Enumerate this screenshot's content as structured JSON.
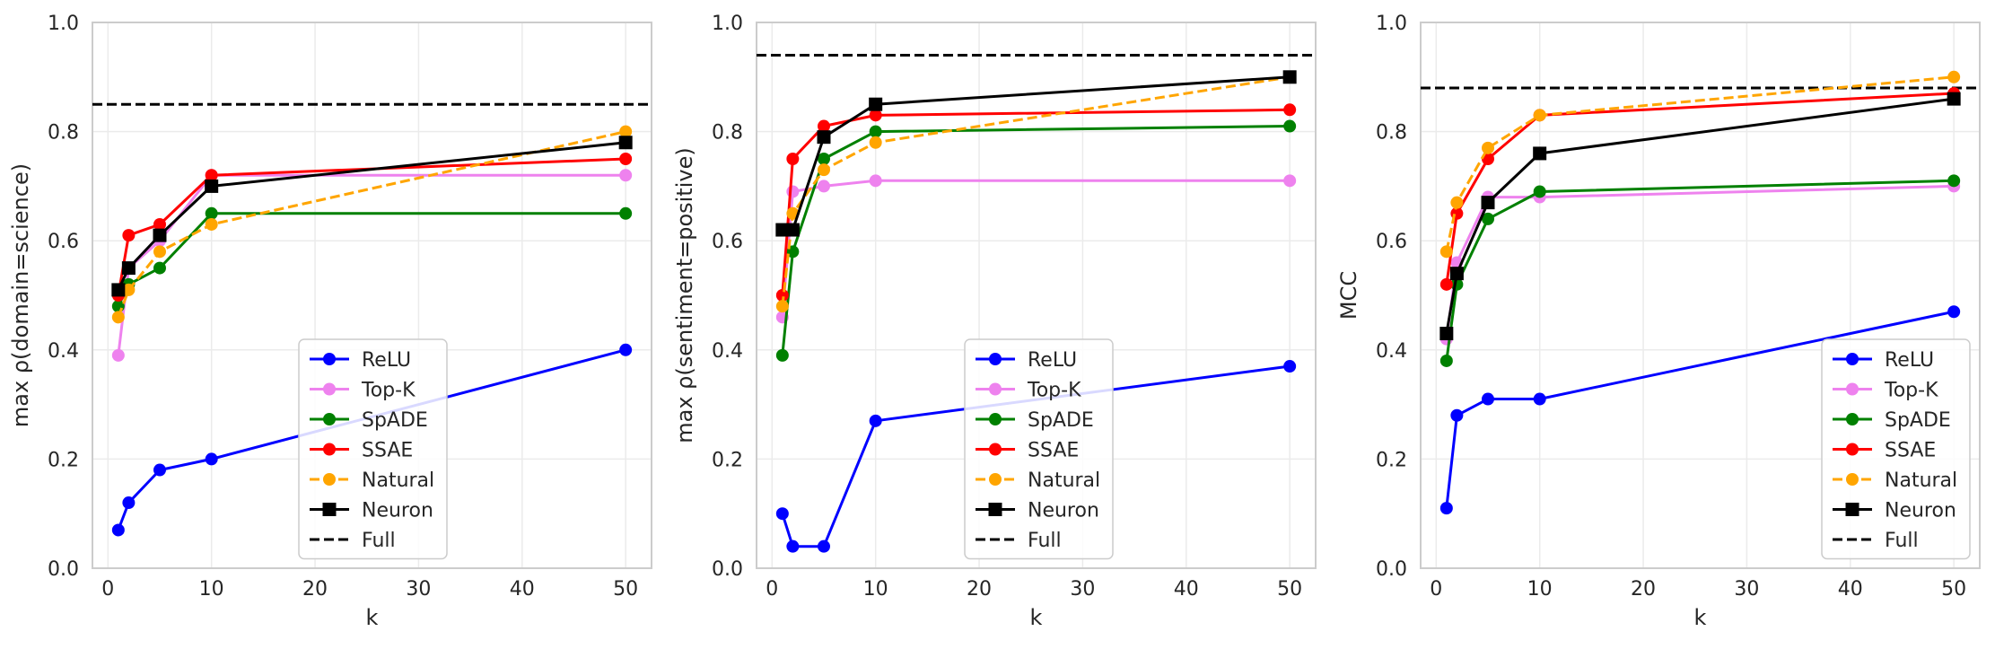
{
  "chart_data": [
    {
      "type": "line",
      "title": "",
      "xlabel": "k",
      "ylabel": "max ρ(domain=science)",
      "xlim": [
        -1.5,
        52.5
      ],
      "ylim": [
        0.0,
        1.0
      ],
      "xticks": [
        "0",
        "10",
        "20",
        "30",
        "40",
        "50"
      ],
      "yticks": [
        "0.0",
        "0.2",
        "0.4",
        "0.6",
        "0.8",
        "1.0"
      ],
      "grid": true,
      "legend_position": "lower-center",
      "x": [
        1,
        2,
        5,
        10,
        50
      ],
      "series": [
        {
          "name": "ReLU",
          "color": "#0000ff",
          "style": "solid",
          "marker": "circle",
          "values": [
            0.07,
            0.12,
            0.18,
            0.2,
            0.4
          ]
        },
        {
          "name": "Top-K",
          "color": "#ee82ee",
          "style": "solid",
          "marker": "circle",
          "values": [
            0.39,
            0.55,
            0.6,
            0.72,
            0.72
          ]
        },
        {
          "name": "SpADE",
          "color": "#008000",
          "style": "solid",
          "marker": "circle",
          "values": [
            0.48,
            0.52,
            0.55,
            0.65,
            0.65
          ]
        },
        {
          "name": "SSAE",
          "color": "#ff0000",
          "style": "solid",
          "marker": "circle",
          "values": [
            0.5,
            0.61,
            0.63,
            0.72,
            0.75
          ]
        },
        {
          "name": "Natural",
          "color": "#ffa500",
          "style": "dashed",
          "marker": "circle",
          "values": [
            0.46,
            0.51,
            0.58,
            0.63,
            0.8
          ]
        },
        {
          "name": "Neuron",
          "color": "#000000",
          "style": "solid",
          "marker": "square",
          "values": [
            0.51,
            0.55,
            0.61,
            0.7,
            0.78
          ]
        }
      ],
      "reference": {
        "name": "Full",
        "value": 0.85,
        "color": "#000000",
        "style": "dashed"
      }
    },
    {
      "type": "line",
      "title": "",
      "xlabel": "k",
      "ylabel": "max ρ(sentiment=positive)",
      "xlim": [
        -1.5,
        52.5
      ],
      "ylim": [
        0.0,
        1.0
      ],
      "xticks": [
        "0",
        "10",
        "20",
        "30",
        "40",
        "50"
      ],
      "yticks": [
        "0.0",
        "0.2",
        "0.4",
        "0.6",
        "0.8",
        "1.0"
      ],
      "grid": true,
      "legend_position": "lower-center",
      "x": [
        1,
        2,
        5,
        10,
        50
      ],
      "series": [
        {
          "name": "ReLU",
          "color": "#0000ff",
          "style": "solid",
          "marker": "circle",
          "values": [
            0.1,
            0.04,
            0.04,
            0.27,
            0.37
          ]
        },
        {
          "name": "Top-K",
          "color": "#ee82ee",
          "style": "solid",
          "marker": "circle",
          "values": [
            0.46,
            0.69,
            0.7,
            0.71,
            0.71
          ]
        },
        {
          "name": "SpADE",
          "color": "#008000",
          "style": "solid",
          "marker": "circle",
          "values": [
            0.39,
            0.58,
            0.75,
            0.8,
            0.81
          ]
        },
        {
          "name": "SSAE",
          "color": "#ff0000",
          "style": "solid",
          "marker": "circle",
          "values": [
            0.5,
            0.75,
            0.81,
            0.83,
            0.84
          ]
        },
        {
          "name": "Natural",
          "color": "#ffa500",
          "style": "dashed",
          "marker": "circle",
          "values": [
            0.48,
            0.65,
            0.73,
            0.78,
            0.9
          ]
        },
        {
          "name": "Neuron",
          "color": "#000000",
          "style": "solid",
          "marker": "square",
          "values": [
            0.62,
            0.62,
            0.79,
            0.85,
            0.9
          ]
        }
      ],
      "reference": {
        "name": "Full",
        "value": 0.94,
        "color": "#000000",
        "style": "dashed"
      }
    },
    {
      "type": "line",
      "title": "",
      "xlabel": "k",
      "ylabel": "MCC",
      "xlim": [
        -1.5,
        52.5
      ],
      "ylim": [
        0.0,
        1.0
      ],
      "xticks": [
        "0",
        "10",
        "20",
        "30",
        "40",
        "50"
      ],
      "yticks": [
        "0.0",
        "0.2",
        "0.4",
        "0.6",
        "0.8",
        "1.0"
      ],
      "grid": true,
      "legend_position": "lower-right",
      "x": [
        1,
        2,
        5,
        10,
        50
      ],
      "series": [
        {
          "name": "ReLU",
          "color": "#0000ff",
          "style": "solid",
          "marker": "circle",
          "values": [
            0.11,
            0.28,
            0.31,
            0.31,
            0.47
          ]
        },
        {
          "name": "Top-K",
          "color": "#ee82ee",
          "style": "solid",
          "marker": "circle",
          "values": [
            0.42,
            0.56,
            0.68,
            0.68,
            0.7
          ]
        },
        {
          "name": "SpADE",
          "color": "#008000",
          "style": "solid",
          "marker": "circle",
          "values": [
            0.38,
            0.52,
            0.64,
            0.69,
            0.71
          ]
        },
        {
          "name": "SSAE",
          "color": "#ff0000",
          "style": "solid",
          "marker": "circle",
          "values": [
            0.52,
            0.65,
            0.75,
            0.83,
            0.87
          ]
        },
        {
          "name": "Natural",
          "color": "#ffa500",
          "style": "dashed",
          "marker": "circle",
          "values": [
            0.58,
            0.67,
            0.77,
            0.83,
            0.9
          ]
        },
        {
          "name": "Neuron",
          "color": "#000000",
          "style": "solid",
          "marker": "square",
          "values": [
            0.43,
            0.54,
            0.67,
            0.76,
            0.86
          ]
        }
      ],
      "reference": {
        "name": "Full",
        "value": 0.88,
        "color": "#000000",
        "style": "dashed"
      }
    }
  ]
}
